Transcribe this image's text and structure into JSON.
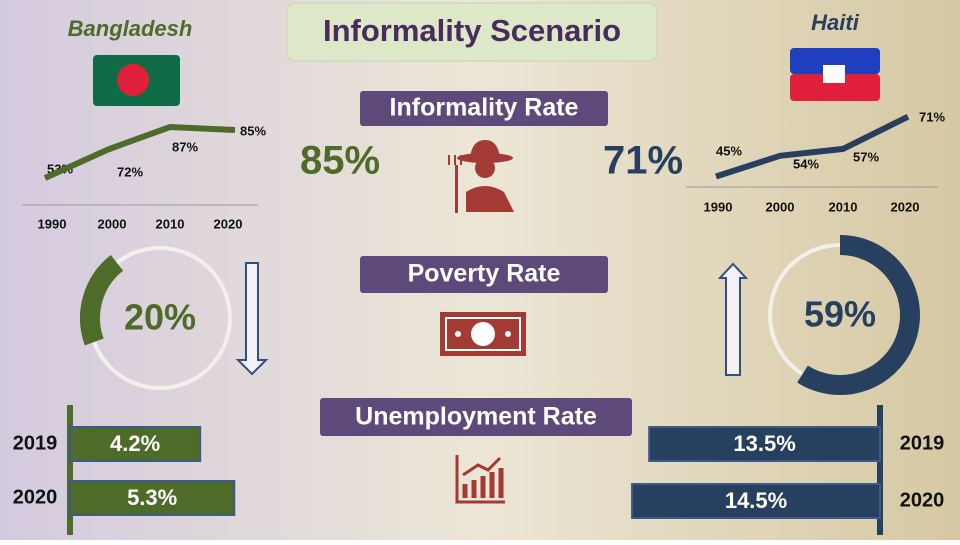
{
  "title": "Informality Scenario",
  "sections": [
    "Informality Rate",
    "Poverty Rate",
    "Unemployment Rate"
  ],
  "countries": [
    {
      "name": "Bangladesh",
      "color": "#4e6b2a",
      "informality": {
        "value": 85,
        "label": "85%"
      },
      "trend": {
        "categories": [
          "1990",
          "2000",
          "2010",
          "2020"
        ],
        "values": [
          53,
          72,
          87,
          85
        ],
        "value_labels": [
          "53%",
          "72%",
          "87%",
          "85%"
        ]
      },
      "poverty": {
        "value": 20,
        "label": "20%"
      },
      "unemployment": {
        "categories": [
          "2019",
          "2020"
        ],
        "values": [
          4.2,
          5.3
        ],
        "value_labels": [
          "4.2%",
          "5.3%"
        ]
      }
    },
    {
      "name": "Haiti",
      "color": "#27405f",
      "informality": {
        "value": 71,
        "label": "71%"
      },
      "trend": {
        "categories": [
          "1990",
          "2000",
          "2010",
          "2020"
        ],
        "values": [
          45,
          54,
          57,
          71
        ],
        "value_labels": [
          "45%",
          "54%",
          "57%",
          "71%"
        ]
      },
      "poverty": {
        "value": 59,
        "label": "59%"
      },
      "unemployment": {
        "categories": [
          "2019",
          "2020"
        ],
        "values": [
          13.5,
          14.5
        ],
        "value_labels": [
          "13.5%",
          "14.5%"
        ]
      }
    }
  ]
}
